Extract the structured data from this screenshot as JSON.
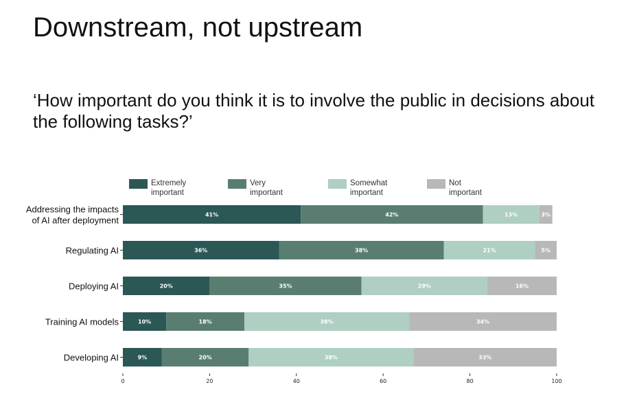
{
  "slide": {
    "title": "Downstream, not upstream",
    "question": "‘How important do you think it is to involve the public in decisions about the following tasks?’"
  },
  "chart_data": {
    "type": "bar",
    "orientation": "horizontal-stacked",
    "categories": [
      [
        "Addressing the impacts",
        "of AI after deployment"
      ],
      [
        "Regulating AI"
      ],
      [
        "Deploying AI"
      ],
      [
        "Training AI models"
      ],
      [
        "Developing AI"
      ]
    ],
    "series": [
      {
        "name": [
          "Extremely",
          "important"
        ],
        "color": "#2b5755",
        "values": [
          41,
          36,
          20,
          10,
          9
        ]
      },
      {
        "name": [
          "Very",
          "important"
        ],
        "color": "#597e71",
        "values": [
          42,
          38,
          35,
          18,
          20
        ]
      },
      {
        "name": [
          "Somewhat",
          "important"
        ],
        "color": "#aecfc2",
        "values": [
          13,
          21,
          29,
          38,
          38
        ]
      },
      {
        "name": [
          "Not",
          "important"
        ],
        "color": "#b8b8b8",
        "values": [
          3,
          5,
          16,
          34,
          33
        ]
      }
    ],
    "value_suffix": "%",
    "xlim": [
      0,
      100
    ],
    "xticks": [
      0,
      20,
      40,
      60,
      80,
      100
    ],
    "legend_position": "top",
    "grid": false
  }
}
